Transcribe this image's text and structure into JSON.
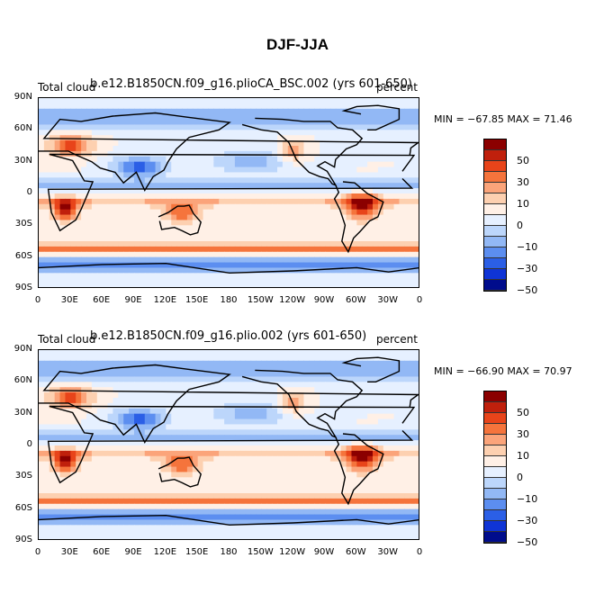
{
  "title": "DJF-JJA",
  "lat_labels": [
    "90N",
    "60N",
    "30N",
    "0",
    "30S",
    "60S",
    "90S"
  ],
  "lon_labels": [
    "0",
    "30E",
    "60E",
    "90E",
    "120E",
    "150E",
    "180",
    "150W",
    "120W",
    "90W",
    "60W",
    "30W",
    "0"
  ],
  "colorbar": {
    "colors": [
      "#8b0000",
      "#c0200c",
      "#e8441a",
      "#f5743c",
      "#fba47a",
      "#fdd0b0",
      "#fff0e6",
      "#e6f0ff",
      "#bcd6fb",
      "#92b8f5",
      "#5c8ef0",
      "#2b5fe6",
      "#0f34d6",
      "#000c8c"
    ],
    "labels": [
      "50",
      "30",
      "10",
      "0",
      "−10",
      "−30",
      "−50"
    ]
  },
  "panels": [
    {
      "left_label": "Total cloud",
      "center_label": "b.e12.B1850CN.f09_g16.plioCA_BSC.002 (yrs 601-650)",
      "right_label": "percent",
      "minmax": "MIN = −67.85 MAX =  71.46"
    },
    {
      "left_label": "Total cloud",
      "center_label": "b.e12.B1850CN.f09_g16.plio.002 (yrs 601-650)",
      "right_label": "percent",
      "minmax": "MIN = −66.90 MAX =  70.97"
    }
  ]
}
